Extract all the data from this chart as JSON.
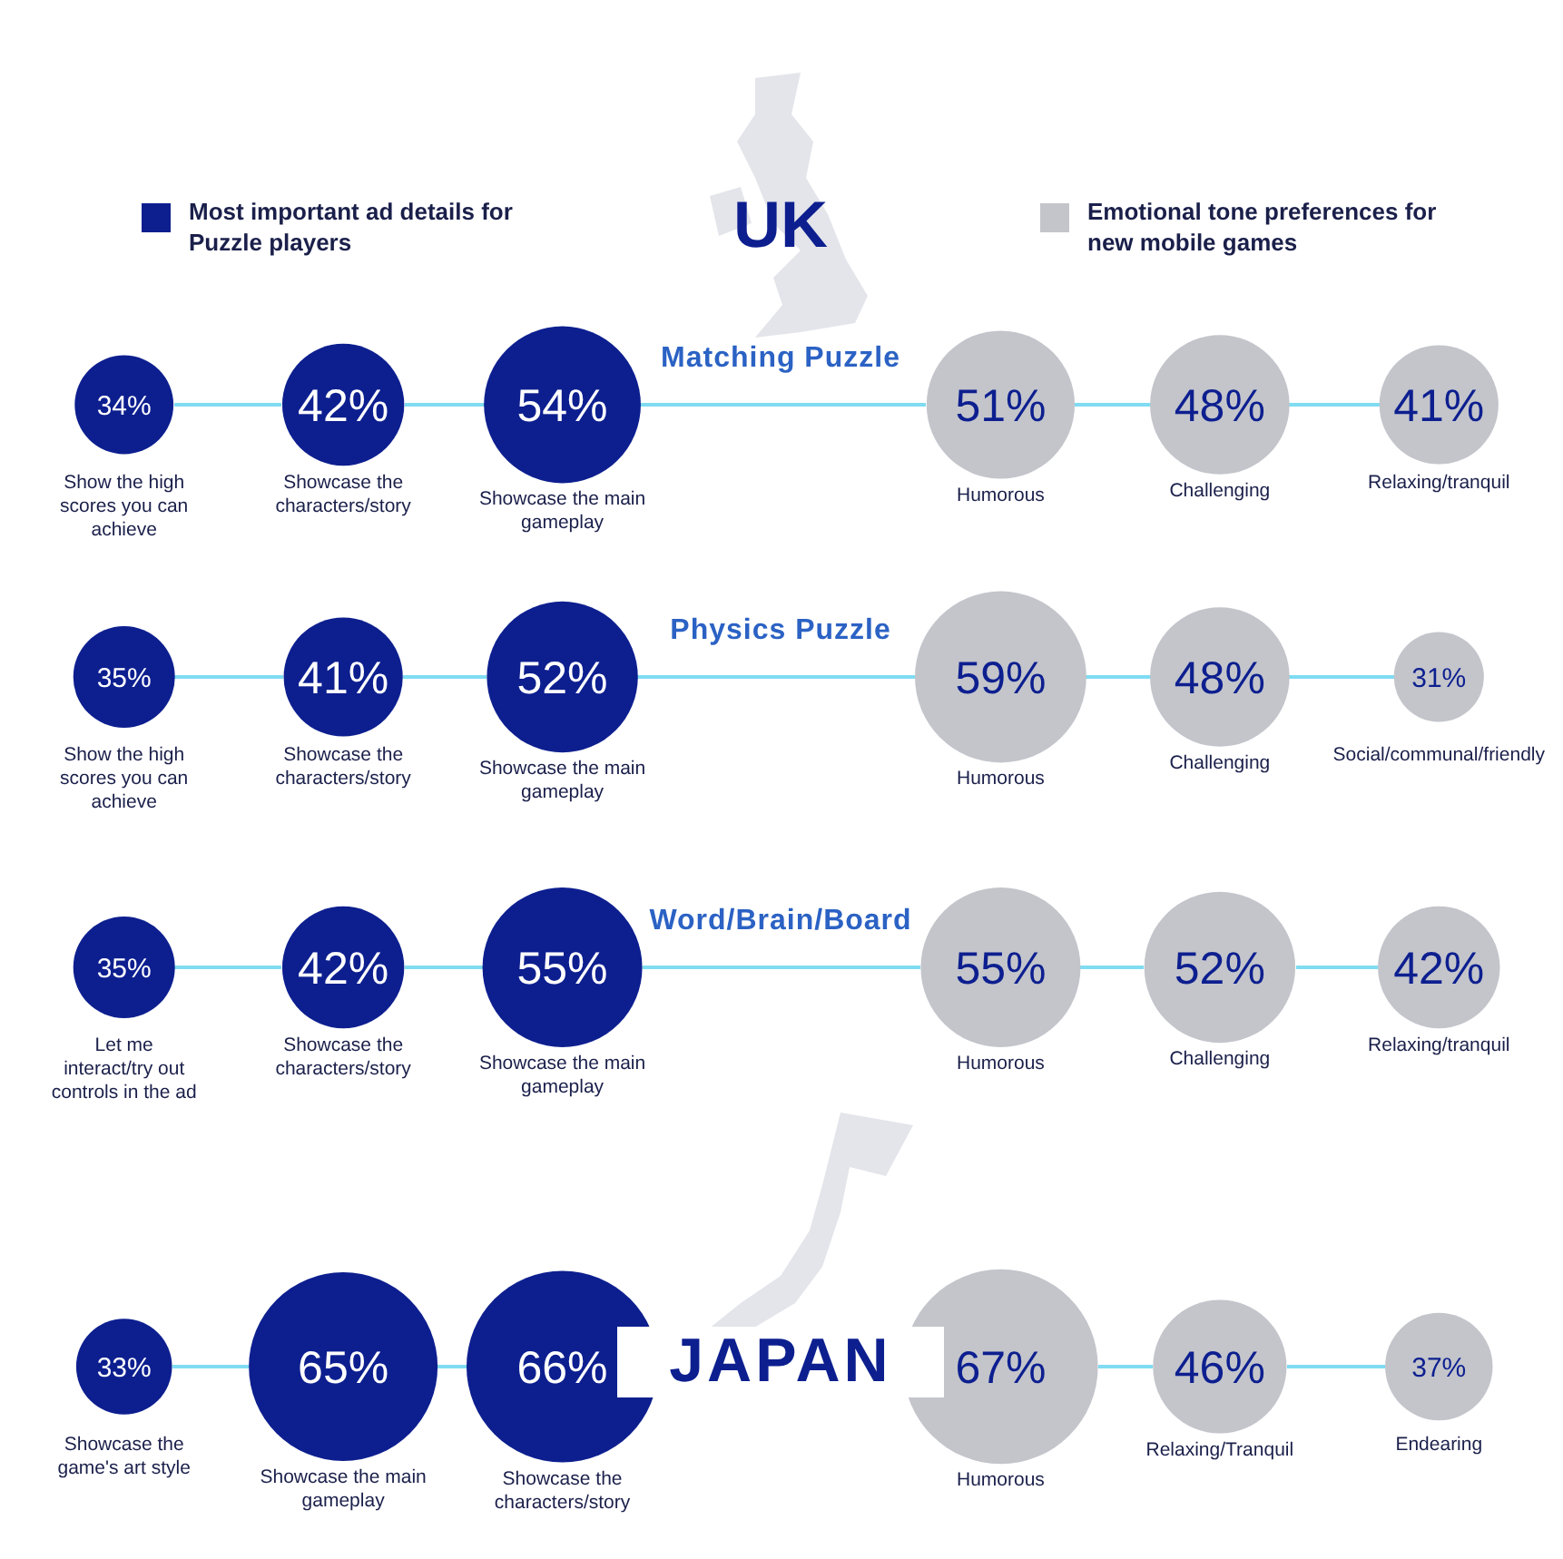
{
  "chart_data": [
    {
      "type": "other",
      "title": "Matching Puzzle",
      "annotations": [
        "UK"
      ],
      "legend": "top",
      "categories": [
        "Show the high scores you can achieve",
        "Showcase the characters/story",
        "Showcase the main gameplay",
        "Humorous",
        "Challenging",
        "Relaxing/tranquil"
      ],
      "series": [
        {
          "name": "Most important ad details for Puzzle players",
          "color": "#0d1f8f",
          "values": [
            34,
            42,
            54,
            null,
            null,
            null
          ],
          "value_labels": [
            "34%",
            "42%",
            "54%",
            null,
            null,
            null
          ]
        },
        {
          "name": "Emotional tone preferences for new mobile games",
          "color": "#c3c5cb",
          "values": [
            null,
            null,
            null,
            51,
            48,
            41
          ],
          "value_labels": [
            null,
            null,
            null,
            "51%",
            "48%",
            "41%"
          ]
        }
      ]
    },
    {
      "type": "other",
      "title": "Physics Puzzle",
      "categories": [
        "Show the high scores you can achieve",
        "Showcase the characters/story",
        "Showcase the main gameplay",
        "Humorous",
        "Challenging",
        "Social/communal/friendly"
      ],
      "series": [
        {
          "color": "#0d1f8f",
          "values": [
            35,
            41,
            52,
            null,
            null,
            null
          ],
          "value_labels": [
            "35%",
            "41%",
            "52%",
            null,
            null,
            null
          ]
        },
        {
          "color": "#c3c5cb",
          "values": [
            null,
            null,
            null,
            59,
            48,
            31
          ],
          "value_labels": [
            null,
            null,
            null,
            "59%",
            "48%",
            "31%"
          ]
        }
      ]
    },
    {
      "type": "other",
      "title": "Word/Brain/Board",
      "categories": [
        "Let me interact/try out controls in the ad",
        "Showcase the characters/story",
        "Showcase the main gameplay",
        "Humorous",
        "Challenging",
        "Relaxing/tranquil"
      ],
      "series": [
        {
          "color": "#0d1f8f",
          "values": [
            35,
            42,
            55,
            null,
            null,
            null
          ],
          "value_labels": [
            "35%",
            "42%",
            "55%",
            null,
            null,
            null
          ]
        },
        {
          "color": "#c3c5cb",
          "values": [
            null,
            null,
            null,
            55,
            52,
            42
          ],
          "value_labels": [
            null,
            null,
            null,
            "55%",
            "52%",
            "42%"
          ]
        }
      ]
    },
    {
      "type": "other",
      "title": "JAPAN",
      "categories": [
        "Showcase the game's art style",
        "Showcase the main gameplay",
        "Showcase the characters/story",
        "Humorous",
        "Relaxing/Tranquil",
        "Endearing"
      ],
      "series": [
        {
          "color": "#0d1f8f",
          "values": [
            33,
            65,
            66,
            null,
            null,
            null
          ],
          "value_labels": [
            "33%",
            "65%",
            "66%",
            null,
            null,
            null
          ]
        },
        {
          "color": "#c3c5cb",
          "values": [
            null,
            null,
            null,
            67,
            46,
            37
          ],
          "value_labels": [
            null,
            null,
            null,
            "67%",
            "46%",
            "37%"
          ]
        }
      ]
    }
  ]
}
